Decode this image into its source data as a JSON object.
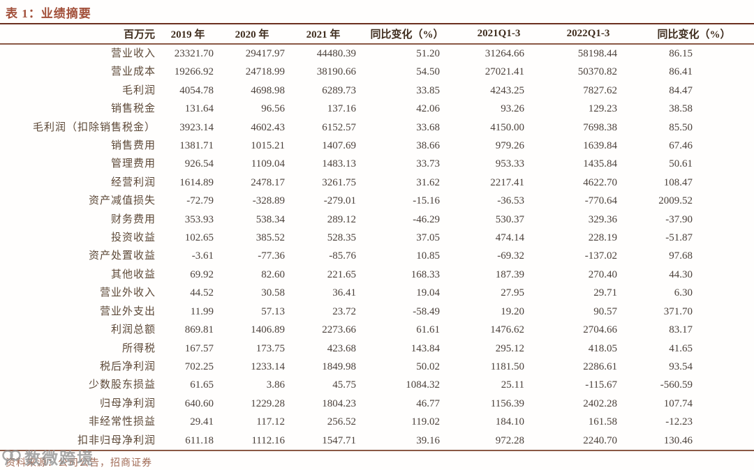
{
  "title": "表 1：业绩摘要",
  "table": {
    "headers": [
      "百万元",
      "2019 年",
      "2020 年",
      "2021 年",
      "同比变化（%）",
      "2021Q1-3",
      "2022Q1-3",
      "同比变化（%）"
    ],
    "rows": [
      {
        "label": "营业收入",
        "values": [
          "23321.70",
          "29417.97",
          "44480.39",
          "51.20",
          "31264.66",
          "58198.44",
          "86.15"
        ]
      },
      {
        "label": "营业成本",
        "values": [
          "19266.92",
          "24718.99",
          "38190.66",
          "54.50",
          "27021.41",
          "50370.82",
          "86.41"
        ]
      },
      {
        "label": "毛利润",
        "values": [
          "4054.78",
          "4698.98",
          "6289.73",
          "33.85",
          "4243.25",
          "7827.62",
          "84.47"
        ]
      },
      {
        "label": "销售税金",
        "values": [
          "131.64",
          "96.56",
          "137.16",
          "42.06",
          "93.26",
          "129.23",
          "38.58"
        ]
      },
      {
        "label": "毛利润（扣除销售税金）",
        "values": [
          "3923.14",
          "4602.43",
          "6152.57",
          "33.68",
          "4150.00",
          "7698.38",
          "85.50"
        ]
      },
      {
        "label": "销售费用",
        "values": [
          "1381.71",
          "1015.21",
          "1407.69",
          "38.66",
          "979.26",
          "1639.84",
          "67.46"
        ]
      },
      {
        "label": "管理费用",
        "values": [
          "926.54",
          "1109.04",
          "1483.13",
          "33.73",
          "953.33",
          "1435.84",
          "50.61"
        ]
      },
      {
        "label": "经营利润",
        "values": [
          "1614.89",
          "2478.17",
          "3261.75",
          "31.62",
          "2217.41",
          "4622.70",
          "108.47"
        ]
      },
      {
        "label": "资产减值损失",
        "values": [
          "-72.79",
          "-328.89",
          "-279.01",
          "-15.16",
          "-36.53",
          "-770.64",
          "2009.52"
        ]
      },
      {
        "label": "财务费用",
        "values": [
          "353.93",
          "538.34",
          "289.12",
          "-46.29",
          "530.37",
          "329.36",
          "-37.90"
        ]
      },
      {
        "label": "投资收益",
        "values": [
          "102.65",
          "385.52",
          "528.35",
          "37.05",
          "474.14",
          "228.19",
          "-51.87"
        ]
      },
      {
        "label": "资产处置收益",
        "values": [
          "-3.61",
          "-77.36",
          "-85.76",
          "10.85",
          "-69.32",
          "-137.02",
          "97.68"
        ]
      },
      {
        "label": "其他收益",
        "values": [
          "69.92",
          "82.60",
          "221.65",
          "168.33",
          "187.39",
          "270.40",
          "44.30"
        ]
      },
      {
        "label": "营业外收入",
        "values": [
          "44.52",
          "30.58",
          "36.41",
          "19.04",
          "27.95",
          "29.71",
          "6.30"
        ]
      },
      {
        "label": "营业外支出",
        "values": [
          "11.99",
          "57.13",
          "23.72",
          "-58.49",
          "19.20",
          "90.57",
          "371.70"
        ]
      },
      {
        "label": "利润总额",
        "values": [
          "869.81",
          "1406.89",
          "2273.66",
          "61.61",
          "1476.62",
          "2704.66",
          "83.17"
        ]
      },
      {
        "label": "所得税",
        "values": [
          "167.57",
          "173.75",
          "423.68",
          "143.84",
          "295.12",
          "418.05",
          "41.65"
        ]
      },
      {
        "label": "税后净利润",
        "values": [
          "702.25",
          "1233.14",
          "1849.98",
          "50.02",
          "1181.50",
          "2286.61",
          "93.54"
        ]
      },
      {
        "label": "少数股东损益",
        "values": [
          "61.65",
          "3.86",
          "45.75",
          "1084.32",
          "25.11",
          "-115.67",
          "-560.59"
        ]
      },
      {
        "label": "归母净利润",
        "values": [
          "640.60",
          "1229.28",
          "1804.23",
          "46.77",
          "1156.39",
          "2402.28",
          "107.74"
        ]
      },
      {
        "label": "非经常性损益",
        "values": [
          "29.41",
          "117.12",
          "256.52",
          "119.02",
          "184.10",
          "161.58",
          "-12.23"
        ]
      },
      {
        "label": "扣非归母净利润",
        "values": [
          "611.18",
          "1112.16",
          "1547.71",
          "39.16",
          "972.28",
          "2240.70",
          "130.46"
        ]
      }
    ]
  },
  "footer": {
    "source": "资料来源：公司公告，招商证券"
  },
  "watermark": {
    "text": "数微跨境"
  },
  "colors": {
    "accent": "#a2503a",
    "rule-dark": "#6b2f1f",
    "rule-mid": "#8a5845",
    "header-text": "#3f2d1e",
    "label-text": "#5d4938",
    "num-text": "#4a403a",
    "footer-text": "#a06a55",
    "watermark": "#8f8f8f"
  }
}
